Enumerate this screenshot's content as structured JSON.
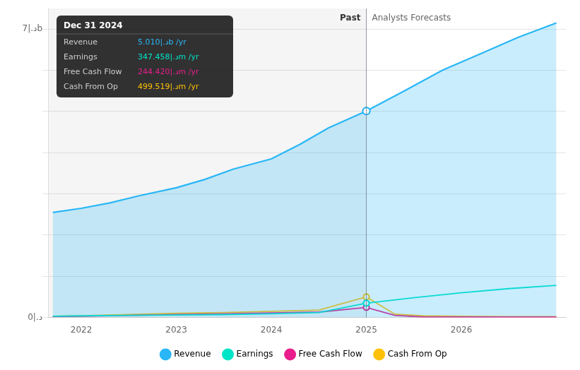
{
  "chart_data": {
    "type": "line",
    "xlim": [
      2021.65,
      2027.1
    ],
    "xticks": [
      2022,
      2023,
      2024,
      2025,
      2026
    ],
    "ylim": [
      0.0,
      7.5
    ],
    "yticks": [
      0,
      1,
      2,
      3,
      4,
      5,
      6,
      7
    ],
    "tick_labels": "x",
    "grid": true,
    "legend": "bottom",
    "series": [
      {
        "name": "Revenue",
        "color": "#29b6f6",
        "type": "area",
        "x": [
          2021.7,
          2022.0,
          2022.3,
          2022.6,
          2023.0,
          2023.3,
          2023.6,
          2024.0,
          2024.3,
          2024.6,
          2025.0,
          2025.0,
          2025.4,
          2025.8,
          2026.2,
          2026.6,
          2027.0
        ],
        "values": [
          2.55,
          2.65,
          2.78,
          2.95,
          3.15,
          3.35,
          3.6,
          3.85,
          4.2,
          4.6,
          5.01,
          5.01,
          5.5,
          6.0,
          6.4,
          6.8,
          7.15
        ]
      },
      {
        "name": "Earnings",
        "color": "#00e5c8",
        "type": "line",
        "x": [
          2021.7,
          2022.0,
          2022.5,
          2023.0,
          2023.5,
          2024.0,
          2024.5,
          2025.0,
          2025.0,
          2025.5,
          2026.0,
          2026.5,
          2027.0
        ],
        "values": [
          0.03,
          0.04,
          0.05,
          0.06,
          0.07,
          0.09,
          0.12,
          0.347,
          0.347,
          0.48,
          0.6,
          0.7,
          0.78
        ]
      },
      {
        "name": "Free Cash Flow",
        "color": "#e91e8c",
        "type": "line",
        "x": [
          2021.7,
          2022.0,
          2022.5,
          2023.0,
          2023.5,
          2024.0,
          2024.5,
          2025.0,
          2025.0,
          2025.3,
          2025.6,
          2026.0,
          2026.5,
          2027.0
        ],
        "values": [
          0.02,
          0.03,
          0.05,
          0.07,
          0.09,
          0.11,
          0.13,
          0.244,
          0.244,
          0.05,
          0.01,
          0.01,
          0.01,
          0.01
        ]
      },
      {
        "name": "Cash From Op",
        "color": "#ffc107",
        "type": "line",
        "x": [
          2021.7,
          2022.0,
          2022.5,
          2023.0,
          2023.5,
          2024.0,
          2024.5,
          2025.0,
          2025.0,
          2025.3,
          2025.6,
          2026.0,
          2026.5,
          2027.0
        ],
        "values": [
          0.03,
          0.04,
          0.07,
          0.1,
          0.12,
          0.15,
          0.18,
          0.4995,
          0.4995,
          0.08,
          0.04,
          0.03,
          0.02,
          0.02
        ]
      }
    ],
    "annotations": [
      {
        "x": 2025.0,
        "text": "Past"
      },
      {
        "x": 2025.0,
        "text": "Analysts Forecasts"
      },
      {
        "y": 7,
        "text": "7|.ﺩb"
      },
      {
        "y": 0,
        "text": "0|.ﺩ"
      }
    ],
    "tooltip": {
      "title": "Dec 31 2024",
      "rows": [
        {
          "label": "Revenue",
          "value": "5.010|.ﺩb /yr",
          "color": "#29b6f6"
        },
        {
          "label": "Earnings",
          "value": "347.458|.ﺩm /yr",
          "color": "#00e5c8"
        },
        {
          "label": "Free Cash Flow",
          "value": "244.420|.ﺩm /yr",
          "color": "#e91e8c"
        },
        {
          "label": "Cash From Op",
          "value": "499.519|.ﺩm /yr",
          "color": "#ffc107"
        }
      ]
    }
  }
}
